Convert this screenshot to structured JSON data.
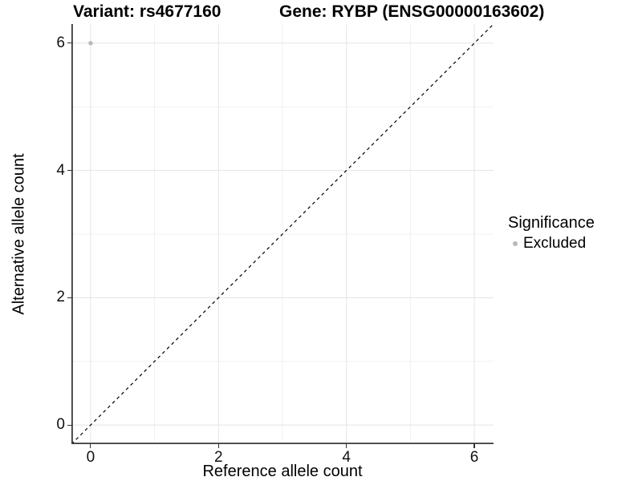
{
  "header": {
    "variant_title": "Variant: rs4677160",
    "gene_title": "Gene: RYBP (ENSG00000163602)"
  },
  "chart_data": {
    "type": "scatter",
    "title": "Variant: rs4677160   Gene: RYBP (ENSG00000163602)",
    "xlabel": "Reference allele count",
    "ylabel": "Alternative allele count",
    "xlim": [
      -0.3,
      6.3
    ],
    "ylim": [
      -0.3,
      6.3
    ],
    "xticks": [
      0,
      2,
      4,
      6
    ],
    "yticks": [
      0,
      2,
      4,
      6
    ],
    "xticks_minor": [
      1,
      3,
      5
    ],
    "yticks_minor": [
      1,
      3,
      5
    ],
    "grid": "on",
    "points": [
      {
        "x": 0,
        "y": 6,
        "series": "Excluded"
      }
    ],
    "identity_line": {
      "type": "abline",
      "slope": 1,
      "intercept": 0,
      "style": "dashed"
    },
    "legend": {
      "position": "right",
      "title": "Significance",
      "entries": [
        {
          "label": "Excluded",
          "color": "#b9b9b9",
          "marker": "circle"
        }
      ]
    }
  },
  "colors": {
    "point": "#b9b9b9",
    "grid_major": "#e7e7e7",
    "grid_minor": "#f1f1f1",
    "axis_line": "#3a3a3a",
    "tick_mark": "#333333",
    "identity_line": "#000000",
    "background": "#ffffff"
  }
}
